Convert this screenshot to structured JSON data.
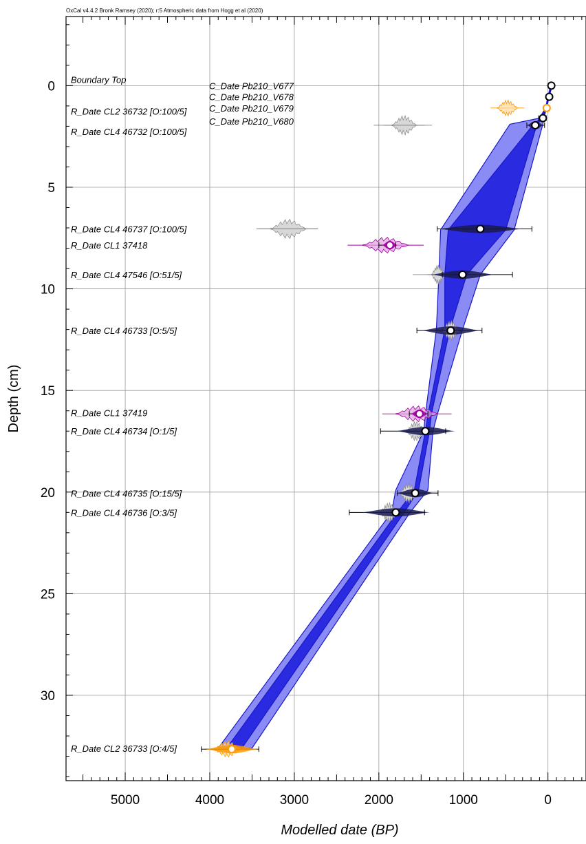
{
  "credit": "OxCal v4.4.2 Bronk Ramsey (2020); r:5 Atmospheric data from Hogg et al (2020)",
  "chart_data": {
    "type": "scatter",
    "title": "",
    "xlabel": "Modelled date (BP)",
    "ylabel": "Depth (cm)",
    "xlim": [
      5700,
      -450
    ],
    "ylim": [
      34.2,
      -3.4
    ],
    "x_ticks": [
      5000,
      4000,
      3000,
      2000,
      1000,
      0
    ],
    "y_ticks": [
      0,
      5,
      10,
      15,
      20,
      25,
      30
    ],
    "grid": true,
    "labels": [
      {
        "text": "Boundary Top",
        "depth": -0.3,
        "side": "left"
      },
      {
        "text": "C_Date Pb210_V677",
        "depth": 0.0,
        "side": "right"
      },
      {
        "text": "C_Date Pb210_V678",
        "depth": 0.55,
        "side": "right"
      },
      {
        "text": "C_Date Pb210_V679",
        "depth": 1.1,
        "side": "right"
      },
      {
        "text": "C_Date Pb210_V680",
        "depth": 1.75,
        "side": "right"
      },
      {
        "text": "R_Date CL2 36732 [O:100/5]",
        "depth": 1.25,
        "side": "left"
      },
      {
        "text": "R_Date CL4 46732 [O:100/5]",
        "depth": 2.25,
        "side": "left"
      },
      {
        "text": "R_Date CL4 46737 [O:100/5]",
        "depth": 7.05,
        "side": "left"
      },
      {
        "text": "R_Date CL1 37418",
        "depth": 7.85,
        "side": "left"
      },
      {
        "text": "R_Date CL4 47546 [O:51/5]",
        "depth": 9.3,
        "side": "left"
      },
      {
        "text": "R_Date CL4 46733 [O:5/5]",
        "depth": 12.05,
        "side": "left"
      },
      {
        "text": "R_Date CL1 37419",
        "depth": 16.1,
        "side": "left"
      },
      {
        "text": "R_Date CL4 46734 [O:1/5]",
        "depth": 17.0,
        "side": "left"
      },
      {
        "text": "R_Date CL4 46735 [O:15/5]",
        "depth": 20.05,
        "side": "left"
      },
      {
        "text": "R_Date CL4 46736 [O:3/5]",
        "depth": 21.0,
        "side": "left"
      },
      {
        "text": "R_Date CL2 36733 [O:4/5]",
        "depth": 32.6,
        "side": "left"
      }
    ],
    "envelope": {
      "depth": [
        0,
        0.55,
        1.1,
        1.6,
        1.9,
        7.1,
        9.3,
        12.0,
        16.2,
        17.0,
        19.9,
        21.0,
        32.6
      ],
      "outer_old": [
        -30,
        0,
        30,
        100,
        450,
        1270,
        1290,
        1320,
        1450,
        1470,
        1800,
        1850,
        3900
      ],
      "outer_young": [
        -50,
        -15,
        15,
        50,
        60,
        400,
        800,
        1010,
        1310,
        1360,
        1420,
        1630,
        3500
      ],
      "inner_old": [
        -35,
        -5,
        25,
        80,
        170,
        1180,
        1220,
        1220,
        1420,
        1450,
        1580,
        1780,
        3800
      ],
      "inner_young": [
        -45,
        -12,
        18,
        60,
        130,
        500,
        960,
        1160,
        1380,
        1400,
        1530,
        1700,
        3620
      ]
    },
    "dates": [
      {
        "name": "Boundary Top",
        "depth": 0.0,
        "median": -40,
        "color": "#000000",
        "prior": [],
        "posterior": [
          -30,
          -55
        ]
      },
      {
        "name": "C_Date Pb210_V678",
        "depth": 0.55,
        "median": -15,
        "color": "#000000",
        "prior": [],
        "posterior": [
          0,
          -30
        ]
      },
      {
        "name": "C_Date Pb210_V679",
        "depth": 1.1,
        "median": 15,
        "color": "#ff9900",
        "prior": [
          680,
          280
        ],
        "posterior": [
          40,
          -5
        ]
      },
      {
        "name": "C_Date Pb210_V680",
        "depth": 1.6,
        "median": 60,
        "color": "#000000",
        "prior": [],
        "posterior": [
          110,
          20
        ]
      },
      {
        "name": "R_Date CL4 46732 [O:100/5]",
        "depth": 1.95,
        "median": 150,
        "color": "#000000",
        "prior": [
          2060,
          1370
        ],
        "posterior": [
          250,
          40
        ]
      },
      {
        "name": "R_Date CL4 46737 [O:100/5]",
        "depth": 7.05,
        "median": 800,
        "color": "#000000",
        "prior": [
          3450,
          2720
        ],
        "posterior": [
          1310,
          190
        ]
      },
      {
        "name": "R_Date CL1 37418",
        "depth": 7.85,
        "median": 1870,
        "color": "#a000a0",
        "prior": [
          2370,
          1470
        ],
        "posterior": [
          2000,
          1800
        ]
      },
      {
        "name": "R_Date CL4 47546 [O:51/5]",
        "depth": 9.3,
        "median": 1010,
        "color": "#000000",
        "prior": [
          1600,
          1200
        ],
        "posterior": [
          1250,
          420
        ]
      },
      {
        "name": "R_Date CL4 46733 [O:5/5]",
        "depth": 12.05,
        "median": 1150,
        "color": "#000000",
        "prior": [
          1320,
          1030
        ],
        "posterior": [
          1550,
          780
        ]
      },
      {
        "name": "R_Date CL1 37419",
        "depth": 16.15,
        "median": 1520,
        "color": "#a000a0",
        "prior": [
          1960,
          1140
        ],
        "posterior": [
          1640,
          1420
        ]
      },
      {
        "name": "R_Date CL4 46734 [O:1/5]",
        "depth": 17.0,
        "median": 1450,
        "color": "#000000",
        "prior": [
          1720,
          1430
        ],
        "posterior": [
          1980,
          1210
        ]
      },
      {
        "name": "R_Date CL4 46735 [O:15/5]",
        "depth": 20.05,
        "median": 1570,
        "color": "#000000",
        "prior": [
          1790,
          1440
        ],
        "posterior": [
          1780,
          1300
        ]
      },
      {
        "name": "R_Date CL4 46736 [O:3/5]",
        "depth": 21.0,
        "median": 1800,
        "color": "#000000",
        "prior": [
          2070,
          1770
        ],
        "posterior": [
          2350,
          1460
        ]
      },
      {
        "name": "R_Date CL2 36733 [O:4/5]",
        "depth": 32.65,
        "median": 3740,
        "color": "#ff9900",
        "prior": [
          4060,
          3520
        ],
        "posterior": [
          4100,
          3420
        ]
      }
    ],
    "grey_priors": [
      {
        "depth": 1.95,
        "center": 1700,
        "halfwidth": 150
      },
      {
        "depth": 7.05,
        "center": 3070,
        "halfwidth": 220
      },
      {
        "depth": 9.3,
        "center": 1300,
        "halfwidth": 80
      },
      {
        "depth": 12.05,
        "center": 1150,
        "halfwidth": 110
      },
      {
        "depth": 17.0,
        "center": 1560,
        "halfwidth": 120
      },
      {
        "depth": 20.05,
        "center": 1650,
        "halfwidth": 110
      },
      {
        "depth": 21.0,
        "center": 1880,
        "halfwidth": 110
      }
    ],
    "colors": {
      "envelope_outer": "#8b8bf5",
      "envelope_inner": "#2a2ae0",
      "edge": "#1818c8",
      "grey": "#d8d8d8",
      "magenta": "#a000a0",
      "orange": "#ff9900"
    }
  }
}
